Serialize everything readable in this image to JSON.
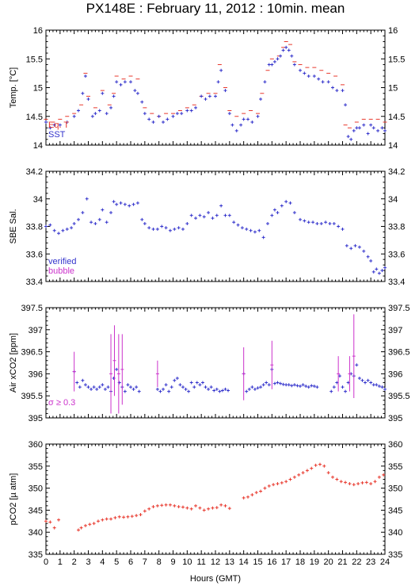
{
  "title": "PX148E : February 11, 2012 : 10min. mean",
  "xlabel": "Hours (GMT)",
  "colors": {
    "red": "#e8382d",
    "blue": "#3333cc",
    "magenta": "#cc33cc",
    "frame": "#000000"
  },
  "chart_data": [
    {
      "type": "scatter",
      "ylabel": "Temp. [°C]",
      "xlim": [
        0,
        24
      ],
      "ylim": [
        14,
        16
      ],
      "xticks": [
        0,
        1,
        2,
        3,
        4,
        5,
        6,
        7,
        8,
        9,
        10,
        11,
        12,
        13,
        14,
        15,
        16,
        17,
        18,
        19,
        20,
        21,
        22,
        23,
        24
      ],
      "yticks": [
        14,
        14.5,
        15,
        15.5,
        16
      ],
      "ytick_labels": [
        "14",
        "14.5",
        "15",
        "15.5",
        "16"
      ],
      "legend": [
        "Eq. T",
        "SST"
      ],
      "series": [
        {
          "name": "Eq. T",
          "color": "#e8382d",
          "marker": "dash",
          "x": [
            0,
            0.5,
            1,
            1.5,
            2,
            2.5,
            2.8,
            3,
            3.5,
            4,
            4.5,
            4.8,
            5,
            5.5,
            6,
            6.5,
            7,
            7.5,
            8,
            8.5,
            9,
            9.5,
            10,
            10.5,
            11,
            11.5,
            12,
            12.3,
            12.7,
            13,
            13.5,
            14,
            14.5,
            15,
            15.3,
            15.7,
            16,
            16.5,
            16.8,
            17,
            17.3,
            17.6,
            18,
            18.5,
            19,
            19.5,
            20,
            20.5,
            21,
            21.2,
            21.5,
            22,
            22.5,
            23,
            23.5,
            24
          ],
          "y": [
            14.45,
            14.4,
            14.45,
            14.5,
            14.55,
            14.7,
            15.25,
            14.85,
            14.65,
            14.95,
            14.7,
            14.9,
            15.2,
            15.15,
            15.2,
            15.15,
            14.65,
            14.55,
            14.5,
            14.55,
            14.55,
            14.6,
            14.65,
            14.7,
            14.85,
            14.9,
            14.9,
            15.4,
            15.0,
            14.6,
            14.5,
            14.55,
            14.6,
            14.55,
            14.9,
            15.3,
            15.5,
            15.55,
            15.7,
            15.8,
            15.75,
            15.45,
            15.4,
            15.35,
            15.35,
            15.3,
            15.25,
            15.2,
            15.05,
            14.35,
            14.3,
            14.4,
            14.45,
            14.45,
            14.45,
            14.4
          ]
        },
        {
          "name": "SST",
          "color": "#3333cc",
          "marker": "cross",
          "x": [
            0,
            0.3,
            0.6,
            1,
            1.5,
            2,
            2.3,
            2.6,
            2.8,
            3,
            3.3,
            3.5,
            3.8,
            4,
            4.3,
            4.6,
            4.8,
            5,
            5.3,
            5.6,
            6,
            6.3,
            6.5,
            6.8,
            7,
            7.3,
            7.6,
            8,
            8.3,
            8.6,
            9,
            9.3,
            9.6,
            10,
            10.3,
            10.6,
            11,
            11.3,
            11.6,
            12,
            12.2,
            12.4,
            12.7,
            13,
            13.2,
            13.5,
            13.8,
            14,
            14.3,
            14.6,
            15,
            15.2,
            15.5,
            15.8,
            16,
            16.2,
            16.4,
            16.6,
            16.8,
            17,
            17.2,
            17.4,
            17.6,
            18,
            18.3,
            18.6,
            19,
            19.3,
            19.6,
            20,
            20.3,
            20.6,
            21,
            21.2,
            21.4,
            21.6,
            21.8,
            22,
            22.2,
            22.5,
            22.8,
            23,
            23.2,
            23.5,
            23.8,
            24
          ],
          "y": [
            14.4,
            14.3,
            14.35,
            14.35,
            14.4,
            14.5,
            14.6,
            14.9,
            15.2,
            14.8,
            14.5,
            14.55,
            14.6,
            14.9,
            14.55,
            14.65,
            14.85,
            15.1,
            15.05,
            15.1,
            15.1,
            14.95,
            14.9,
            14.75,
            14.55,
            14.45,
            14.4,
            14.5,
            14.4,
            14.45,
            14.5,
            14.55,
            14.55,
            14.6,
            14.6,
            14.65,
            14.85,
            14.8,
            14.85,
            14.85,
            15.1,
            15.3,
            14.95,
            14.55,
            14.35,
            14.25,
            14.35,
            14.45,
            14.45,
            14.4,
            14.5,
            14.8,
            15.1,
            15.4,
            15.4,
            15.45,
            15.5,
            15.55,
            15.65,
            15.7,
            15.65,
            15.55,
            15.4,
            15.3,
            15.25,
            15.2,
            15.2,
            15.15,
            15.1,
            15.1,
            15.0,
            14.95,
            14.95,
            14.7,
            14.15,
            14.1,
            14.25,
            14.3,
            14.3,
            14.35,
            14.2,
            14.35,
            14.3,
            14.25,
            14.3,
            14.25
          ]
        }
      ]
    },
    {
      "type": "scatter",
      "ylabel": "SBE Sal.",
      "xlim": [
        0,
        24
      ],
      "ylim": [
        33.4,
        34.2
      ],
      "xticks": [
        0,
        1,
        2,
        3,
        4,
        5,
        6,
        7,
        8,
        9,
        10,
        11,
        12,
        13,
        14,
        15,
        16,
        17,
        18,
        19,
        20,
        21,
        22,
        23,
        24
      ],
      "yticks": [
        33.4,
        33.6,
        33.8,
        34,
        34.2
      ],
      "ytick_labels": [
        "33.4",
        "33.6",
        "33.8",
        "34",
        "34.2"
      ],
      "legend": [
        "verified",
        "bubble"
      ],
      "series": [
        {
          "name": "verified",
          "color": "#3333cc",
          "marker": "cross",
          "x": [
            0,
            0.3,
            0.6,
            0.9,
            1.2,
            1.5,
            1.8,
            2,
            2.3,
            2.6,
            2.9,
            3.2,
            3.5,
            3.8,
            4,
            4.3,
            4.6,
            4.8,
            5,
            5.3,
            5.6,
            5.9,
            6.2,
            6.5,
            6.8,
            7,
            7.3,
            7.6,
            7.9,
            8.2,
            8.5,
            8.8,
            9.1,
            9.4,
            9.7,
            10,
            10.3,
            10.6,
            10.9,
            11.2,
            11.5,
            11.8,
            12.1,
            12.4,
            12.7,
            13,
            13.3,
            13.6,
            13.9,
            14.2,
            14.5,
            14.8,
            15.1,
            15.4,
            15.7,
            16,
            16.2,
            16.4,
            16.7,
            17,
            17.3,
            17.6,
            18,
            18.3,
            18.6,
            18.9,
            19.2,
            19.5,
            19.8,
            20.1,
            20.4,
            20.7,
            21,
            21.3,
            21.6,
            21.9,
            22.2,
            22.5,
            22.8,
            23,
            23.2,
            23.4,
            23.6,
            23.8,
            24
          ],
          "y": [
            33.8,
            33.81,
            33.77,
            33.75,
            33.77,
            33.78,
            33.79,
            33.82,
            33.85,
            33.9,
            34.0,
            33.83,
            33.82,
            33.85,
            33.92,
            33.83,
            33.9,
            33.98,
            33.96,
            33.97,
            33.96,
            33.95,
            33.96,
            33.97,
            33.85,
            33.82,
            33.79,
            33.78,
            33.78,
            33.8,
            33.79,
            33.77,
            33.78,
            33.79,
            33.78,
            33.82,
            33.88,
            33.86,
            33.88,
            33.87,
            33.9,
            33.86,
            33.88,
            33.95,
            33.88,
            33.88,
            33.83,
            33.81,
            33.79,
            33.78,
            33.77,
            33.76,
            33.77,
            33.72,
            33.82,
            33.88,
            33.92,
            33.9,
            33.95,
            33.98,
            33.97,
            33.9,
            33.85,
            33.84,
            33.83,
            33.83,
            33.82,
            33.82,
            33.83,
            33.82,
            33.82,
            33.8,
            33.78,
            33.66,
            33.64,
            33.66,
            33.65,
            33.62,
            33.58,
            33.55,
            33.47,
            33.49,
            33.46,
            33.48,
            33.5
          ]
        }
      ]
    },
    {
      "type": "scatter",
      "ylabel": "Air xCO2 [ppm]",
      "xlim": [
        0,
        24
      ],
      "ylim": [
        395,
        397.5
      ],
      "xticks": [
        0,
        1,
        2,
        3,
        4,
        5,
        6,
        7,
        8,
        9,
        10,
        11,
        12,
        13,
        14,
        15,
        16,
        17,
        18,
        19,
        20,
        21,
        22,
        23,
        24
      ],
      "yticks": [
        395,
        395.5,
        396,
        396.5,
        397,
        397.5
      ],
      "ytick_labels": [
        "395",
        "395.5",
        "396",
        "396.5",
        "397",
        "397.5"
      ],
      "annotation": "σ ≥ 0.3",
      "series": [
        {
          "name": "verified",
          "color": "#3333cc",
          "marker": "cross",
          "x": [
            2.0,
            2.2,
            2.4,
            2.6,
            2.8,
            3.0,
            3.2,
            3.4,
            3.6,
            3.8,
            4.0,
            4.2,
            4.4,
            4.6,
            4.8,
            5.0,
            5.2,
            5.4,
            5.6,
            5.8,
            6.0,
            6.2,
            6.4,
            6.6,
            7.9,
            8.1,
            8.3,
            8.5,
            8.7,
            8.9,
            9.1,
            9.3,
            9.5,
            9.7,
            9.9,
            10.1,
            10.3,
            10.5,
            10.7,
            10.9,
            11.1,
            11.3,
            11.5,
            11.7,
            11.9,
            12.1,
            12.3,
            12.5,
            12.7,
            12.9,
            14.0,
            14.2,
            14.4,
            14.6,
            14.8,
            15.0,
            15.2,
            15.4,
            15.6,
            15.8,
            16.0,
            16.2,
            16.4,
            16.6,
            16.8,
            17.0,
            17.2,
            17.4,
            17.6,
            17.8,
            18.0,
            18.2,
            18.4,
            18.6,
            18.8,
            19.0,
            19.2,
            20.2,
            20.4,
            20.6,
            20.8,
            21.0,
            21.2,
            21.4,
            21.6,
            21.8,
            22.0,
            22.2,
            22.4,
            22.6,
            22.8,
            23.0,
            23.2,
            23.4,
            23.6,
            23.8,
            24.0
          ],
          "y": [
            396.05,
            395.8,
            395.7,
            395.85,
            395.75,
            395.7,
            395.65,
            395.7,
            395.65,
            395.7,
            395.75,
            395.65,
            395.7,
            395.6,
            395.9,
            396.1,
            395.8,
            395.7,
            395.6,
            395.75,
            395.7,
            395.65,
            395.7,
            395.6,
            395.65,
            395.6,
            395.65,
            395.75,
            395.6,
            395.7,
            395.85,
            395.9,
            395.75,
            395.7,
            395.65,
            395.6,
            395.8,
            395.7,
            395.8,
            395.75,
            395.8,
            395.7,
            395.65,
            395.7,
            395.62,
            395.65,
            395.6,
            395.62,
            395.65,
            395.62,
            396.0,
            395.6,
            395.65,
            395.7,
            395.65,
            395.68,
            395.7,
            395.75,
            395.8,
            395.75,
            396.1,
            395.78,
            395.8,
            395.78,
            395.76,
            395.75,
            395.75,
            395.73,
            395.75,
            395.73,
            395.72,
            395.75,
            395.72,
            395.7,
            395.73,
            395.72,
            395.7,
            395.6,
            395.7,
            395.8,
            395.95,
            395.7,
            395.6,
            395.8,
            396.0,
            395.95,
            396.2,
            395.9,
            395.85,
            395.8,
            395.85,
            395.8,
            395.75,
            395.75,
            395.72,
            395.7,
            395.65
          ]
        },
        {
          "name": "bubble",
          "color": "#cc33cc",
          "marker": "errorbar",
          "x": [
            2.0,
            4.6,
            4.85,
            5.15,
            5.4,
            7.9,
            14.0,
            16.0,
            20.7,
            21.5,
            21.8
          ],
          "y": [
            396.05,
            396.0,
            396.3,
            396.0,
            396.1,
            396.0,
            396.0,
            396.2,
            396.0,
            396.0,
            396.4
          ],
          "err": [
            0.45,
            0.9,
            0.8,
            0.9,
            0.8,
            0.3,
            0.6,
            0.55,
            0.4,
            0.4,
            0.95
          ]
        }
      ]
    },
    {
      "type": "scatter",
      "ylabel": "pCO2 [µ atm]",
      "xlim": [
        0,
        24
      ],
      "ylim": [
        335,
        360
      ],
      "xticks": [
        0,
        1,
        2,
        3,
        4,
        5,
        6,
        7,
        8,
        9,
        10,
        11,
        12,
        13,
        14,
        15,
        16,
        17,
        18,
        19,
        20,
        21,
        22,
        23,
        24
      ],
      "xtick_labels": [
        "0",
        "1",
        "2",
        "3",
        "4",
        "5",
        "6",
        "7",
        "8",
        "9",
        "10",
        "11",
        "12",
        "13",
        "14",
        "15",
        "16",
        "17",
        "18",
        "19",
        "20",
        "21",
        "22",
        "23",
        "24"
      ],
      "yticks": [
        335,
        340,
        345,
        350,
        355,
        360
      ],
      "ytick_labels": [
        "335",
        "340",
        "345",
        "350",
        "355",
        "360"
      ],
      "series": [
        {
          "name": "pCO2",
          "color": "#e8382d",
          "marker": "cross",
          "x": [
            0,
            0.3,
            0.6,
            0.9,
            2.3,
            2.5,
            2.8,
            3.1,
            3.4,
            3.7,
            4.0,
            4.3,
            4.6,
            4.9,
            5.2,
            5.5,
            5.8,
            6.1,
            6.4,
            6.7,
            7.0,
            7.3,
            7.6,
            7.9,
            8.2,
            8.5,
            8.8,
            9.1,
            9.4,
            9.7,
            10.0,
            10.3,
            10.6,
            10.9,
            11.2,
            11.5,
            11.8,
            12.1,
            12.4,
            12.7,
            13.0,
            14.0,
            14.3,
            14.6,
            14.9,
            15.2,
            15.5,
            15.8,
            16.1,
            16.4,
            16.7,
            17.0,
            17.3,
            17.6,
            17.9,
            18.2,
            18.5,
            18.8,
            19.1,
            19.4,
            19.7,
            20.0,
            20.3,
            20.6,
            20.9,
            21.2,
            21.5,
            21.8,
            22.1,
            22.4,
            22.7,
            23.0,
            23.3,
            23.6,
            23.9
          ],
          "y": [
            342.5,
            342.3,
            341.0,
            342.8,
            340.5,
            341.0,
            341.5,
            341.8,
            342.0,
            342.5,
            342.8,
            343.0,
            343.0,
            343.3,
            343.5,
            343.4,
            343.5,
            343.6,
            343.8,
            344.0,
            344.8,
            345.3,
            345.8,
            346.0,
            346.1,
            346.2,
            346.2,
            346.0,
            345.8,
            345.7,
            345.5,
            345.3,
            346.0,
            345.5,
            345.0,
            345.3,
            345.5,
            345.6,
            346.2,
            346.0,
            345.4,
            347.8,
            348.0,
            348.5,
            349.0,
            349.3,
            350.0,
            350.5,
            350.8,
            351.0,
            351.2,
            351.5,
            352.0,
            352.5,
            353.0,
            353.5,
            354.0,
            354.5,
            355.2,
            355.4,
            355.0,
            353.5,
            352.5,
            352.0,
            351.5,
            351.3,
            351.0,
            350.8,
            351.0,
            351.2,
            351.3,
            351.0,
            351.5,
            352.5,
            353.0
          ]
        }
      ]
    }
  ]
}
